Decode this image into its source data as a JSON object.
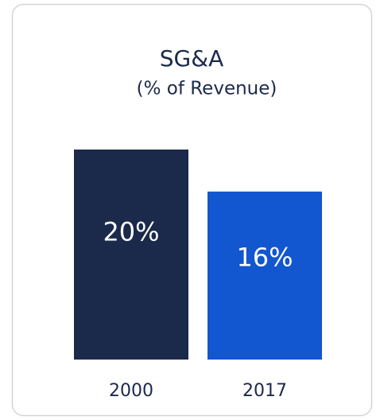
{
  "chart_data": {
    "type": "bar",
    "title": "SG&A",
    "subtitle": "(% of Revenue)",
    "categories": [
      "2000",
      "2017"
    ],
    "values": [
      20,
      16
    ],
    "value_labels": [
      "20%",
      "16%"
    ],
    "colors": [
      "#1b294b",
      "#1256d0"
    ]
  }
}
